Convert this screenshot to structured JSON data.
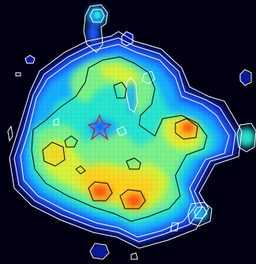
{
  "map": {
    "background": "#000010",
    "colormap": [
      "#0a1aa0",
      "#1a5cff",
      "#17b0ff",
      "#28e6d2",
      "#7cf28a",
      "#d8f53a",
      "#ffd21a",
      "#ff8a12",
      "#ff3a0a"
    ],
    "contour_colors": {
      "outer": "#ffffff",
      "inner": "#000000"
    },
    "marker": {
      "symbol": "star",
      "color": "#d01020"
    }
  }
}
